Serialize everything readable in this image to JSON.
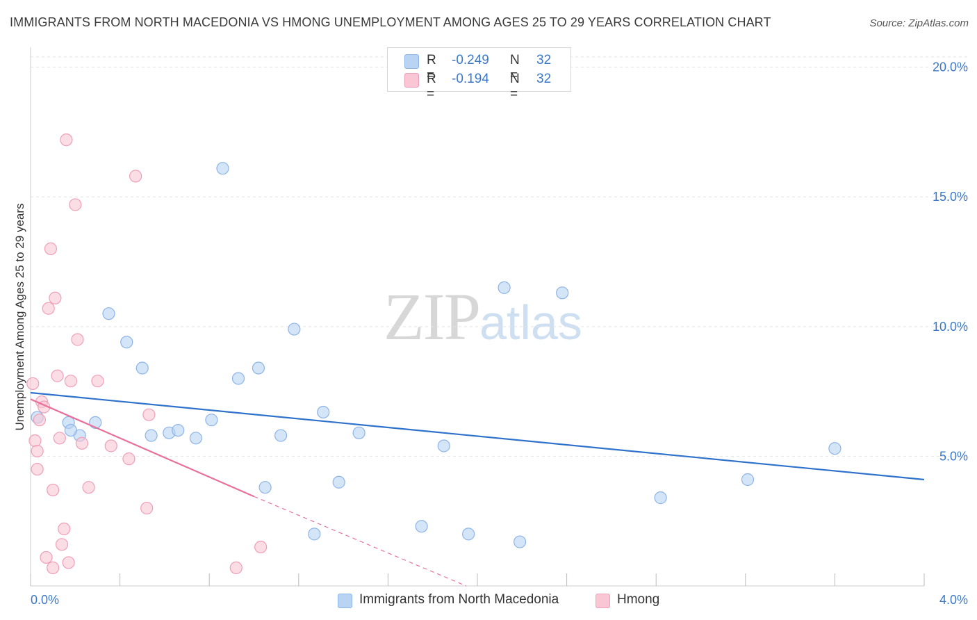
{
  "title": "IMMIGRANTS FROM NORTH MACEDONIA VS HMONG UNEMPLOYMENT AMONG AGES 25 TO 29 YEARS CORRELATION CHART",
  "source": "Source: ZipAtlas.com",
  "watermark": {
    "zip": "ZIP",
    "atlas": "atlas"
  },
  "legend": {
    "rows": [
      {
        "r_label": "R =",
        "r_value": "-0.249",
        "n_label": "N =",
        "n_value": "32"
      },
      {
        "r_label": "R =",
        "r_value": "-0.194",
        "n_label": "N =",
        "n_value": "32"
      }
    ]
  },
  "colors": {
    "blue_fill": "#b9d3f3",
    "blue_stroke": "#8db4e6",
    "blue_line": "#2f72cc",
    "pink_fill": "#f8c6d4",
    "pink_stroke": "#ef9fb8",
    "pink_line": "#e8709a",
    "tick_text": "#3b78c8",
    "grid": "#e3e3e3"
  },
  "chart_data": {
    "type": "scatter",
    "title": "IMMIGRANTS FROM NORTH MACEDONIA VS HMONG UNEMPLOYMENT AMONG AGES 25 TO 29 YEARS CORRELATION CHART",
    "xlabel": "",
    "ylabel": "Unemployment Among Ages 25 to 29 years",
    "xlim": [
      0,
      4
    ],
    "ylim": [
      0,
      20.5
    ],
    "x_tick_labels": [
      "0.0%",
      "4.0%"
    ],
    "y_ticks": [
      5,
      10,
      15,
      20
    ],
    "y_tick_labels": [
      "5.0%",
      "10.0%",
      "15.0%",
      "20.0%"
    ],
    "grid": true,
    "legend_position": "bottom",
    "series": [
      {
        "name": "Immigrants from North Macedonia",
        "color": "#8db4e6",
        "points": [
          [
            0.03,
            6.5
          ],
          [
            0.17,
            6.3
          ],
          [
            0.22,
            5.8
          ],
          [
            0.29,
            6.3
          ],
          [
            0.35,
            10.5
          ],
          [
            0.43,
            9.4
          ],
          [
            0.5,
            8.4
          ],
          [
            0.54,
            5.8
          ],
          [
            0.62,
            5.9
          ],
          [
            0.66,
            6.0
          ],
          [
            0.74,
            5.7
          ],
          [
            0.81,
            6.4
          ],
          [
            0.86,
            16.1
          ],
          [
            0.93,
            8.0
          ],
          [
            1.02,
            8.4
          ],
          [
            1.05,
            3.8
          ],
          [
            1.12,
            5.8
          ],
          [
            1.18,
            9.9
          ],
          [
            1.27,
            2.0
          ],
          [
            1.31,
            6.7
          ],
          [
            1.38,
            4.0
          ],
          [
            1.47,
            5.9
          ],
          [
            1.75,
            2.3
          ],
          [
            1.85,
            5.4
          ],
          [
            1.96,
            2.0
          ],
          [
            2.12,
            11.5
          ],
          [
            2.19,
            1.7
          ],
          [
            2.38,
            11.3
          ],
          [
            2.82,
            3.4
          ],
          [
            3.21,
            4.1
          ],
          [
            3.6,
            5.3
          ],
          [
            0.18,
            6.0
          ]
        ],
        "trend": {
          "x": [
            0.0,
            4.0
          ],
          "y": [
            7.45,
            4.1
          ]
        }
      },
      {
        "name": "Hmong",
        "color": "#ef9fb8",
        "points": [
          [
            0.01,
            7.8
          ],
          [
            0.02,
            5.6
          ],
          [
            0.03,
            5.2
          ],
          [
            0.04,
            6.4
          ],
          [
            0.03,
            4.5
          ],
          [
            0.05,
            7.1
          ],
          [
            0.06,
            6.9
          ],
          [
            0.07,
            1.1
          ],
          [
            0.08,
            10.7
          ],
          [
            0.09,
            13.0
          ],
          [
            0.1,
            0.7
          ],
          [
            0.1,
            3.7
          ],
          [
            0.11,
            11.1
          ],
          [
            0.12,
            8.1
          ],
          [
            0.13,
            5.7
          ],
          [
            0.14,
            1.6
          ],
          [
            0.15,
            2.2
          ],
          [
            0.16,
            17.2
          ],
          [
            0.17,
            0.9
          ],
          [
            0.18,
            7.9
          ],
          [
            0.2,
            14.7
          ],
          [
            0.21,
            9.5
          ],
          [
            0.23,
            5.5
          ],
          [
            0.26,
            3.8
          ],
          [
            0.3,
            7.9
          ],
          [
            0.36,
            5.4
          ],
          [
            0.44,
            4.9
          ],
          [
            0.47,
            15.8
          ],
          [
            0.52,
            3.0
          ],
          [
            0.53,
            6.6
          ],
          [
            0.92,
            0.7
          ],
          [
            1.03,
            1.5
          ]
        ],
        "trend": {
          "x": [
            0.0,
            1.0
          ],
          "y": [
            7.2,
            3.45
          ]
        },
        "trend_extension": {
          "x": [
            1.0,
            1.95
          ],
          "y": [
            3.45,
            0.0
          ]
        }
      }
    ]
  },
  "x_axis": {
    "min_label": "0.0%",
    "max_label": "4.0%"
  },
  "bottom_legend": [
    {
      "label": "Immigrants from North Macedonia"
    },
    {
      "label": "Hmong"
    }
  ]
}
